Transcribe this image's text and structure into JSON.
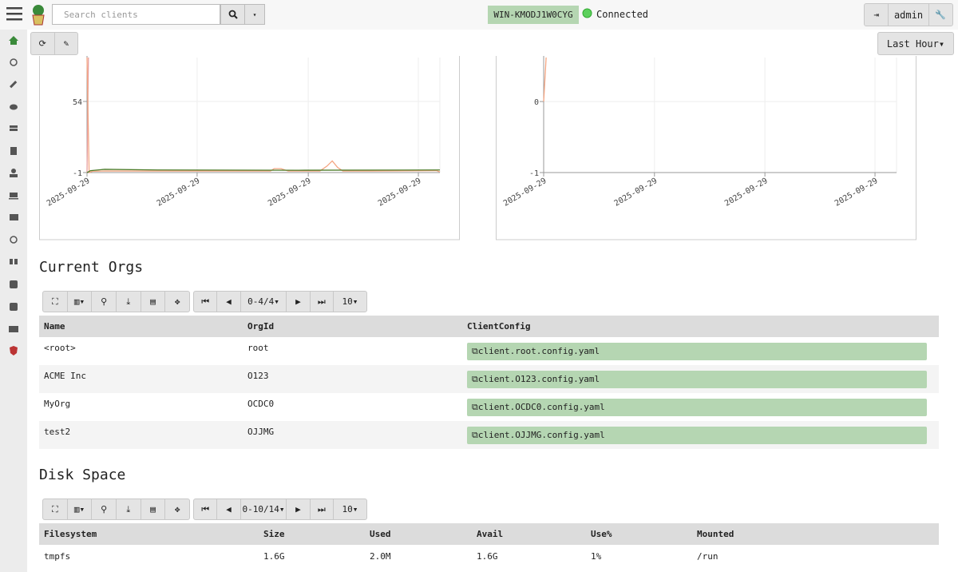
{
  "navbar": {
    "search_placeholder": "Search clients",
    "hostname": "WIN-KMODJ1W0CYG",
    "status": "Connected",
    "user": "admin",
    "time_range": "Last Hour"
  },
  "charts": [
    {
      "type": "line",
      "xlim": [
        0,
        100
      ],
      "ylim": [
        -1,
        88
      ],
      "yticks": [
        54,
        -1
      ],
      "xticks": [
        {
          "value": 0,
          "label": "2025-09-29"
        },
        {
          "value": 31.2,
          "label": "2025-09-29"
        },
        {
          "value": 62.7,
          "label": "2025-09-29"
        },
        {
          "value": 93.9,
          "label": "2025-09-29"
        }
      ],
      "series": [
        {
          "color": "#e8a0a0",
          "x": [
            0,
            0.4
          ],
          "values": [
            -1,
            88
          ]
        },
        {
          "color": "#f4a582",
          "x": [
            0,
            0.6,
            1.5,
            5,
            52,
            53,
            55,
            57,
            58,
            66,
            68,
            69.5,
            71,
            72.5,
            80,
            99,
            100
          ],
          "values": [
            88,
            -1,
            0,
            0.2,
            0.2,
            2,
            2,
            0.2,
            0.2,
            0.2,
            4,
            8,
            3,
            0.2,
            0.2,
            0.5,
            -0.5
          ]
        },
        {
          "color": "#4d7c2a",
          "x": [
            0,
            1,
            5,
            20,
            60,
            100
          ],
          "values": [
            -1,
            0.5,
            1.5,
            1,
            0.8,
            1
          ]
        }
      ]
    },
    {
      "type": "line",
      "xlim": [
        0,
        100
      ],
      "ylim": [
        -1,
        0.62
      ],
      "yticks": [
        0,
        -1
      ],
      "xticks": [
        {
          "value": 0,
          "label": "2025-09-29"
        },
        {
          "value": 31.4,
          "label": "2025-09-29"
        },
        {
          "value": 62.7,
          "label": "2025-09-29"
        },
        {
          "value": 93.9,
          "label": "2025-09-29"
        }
      ],
      "series": [
        {
          "color": "#f4a582",
          "x": [
            0,
            0.7
          ],
          "values": [
            0,
            0.62
          ]
        }
      ]
    }
  ],
  "sections": [
    {
      "title": "Current Orgs",
      "pager": {
        "range": "0-4/4",
        "page_size": 10
      },
      "table": {
        "header": [
          "Name",
          "OrgId",
          "ClientConfig"
        ],
        "rows": [
          [
            "<root>",
            "root",
            "client.root.config.yaml"
          ],
          [
            "ACME Inc",
            "O123",
            "client.O123.config.yaml"
          ],
          [
            "MyOrg",
            "OCDC0",
            "client.OCDC0.config.yaml"
          ],
          [
            "test2",
            "OJJMG",
            "client.OJJMG.config.yaml"
          ]
        ]
      }
    },
    {
      "title": "Disk Space",
      "pager": {
        "range": "0-10/14",
        "page_size": 10
      },
      "table": {
        "header": [
          "Filesystem",
          "Size",
          "Used",
          "Avail",
          "Use%",
          "Mounted"
        ],
        "rows": [
          [
            "tmpfs",
            "1.6G",
            "2.0M",
            "1.6G",
            "1%",
            "/run"
          ]
        ]
      }
    }
  ]
}
